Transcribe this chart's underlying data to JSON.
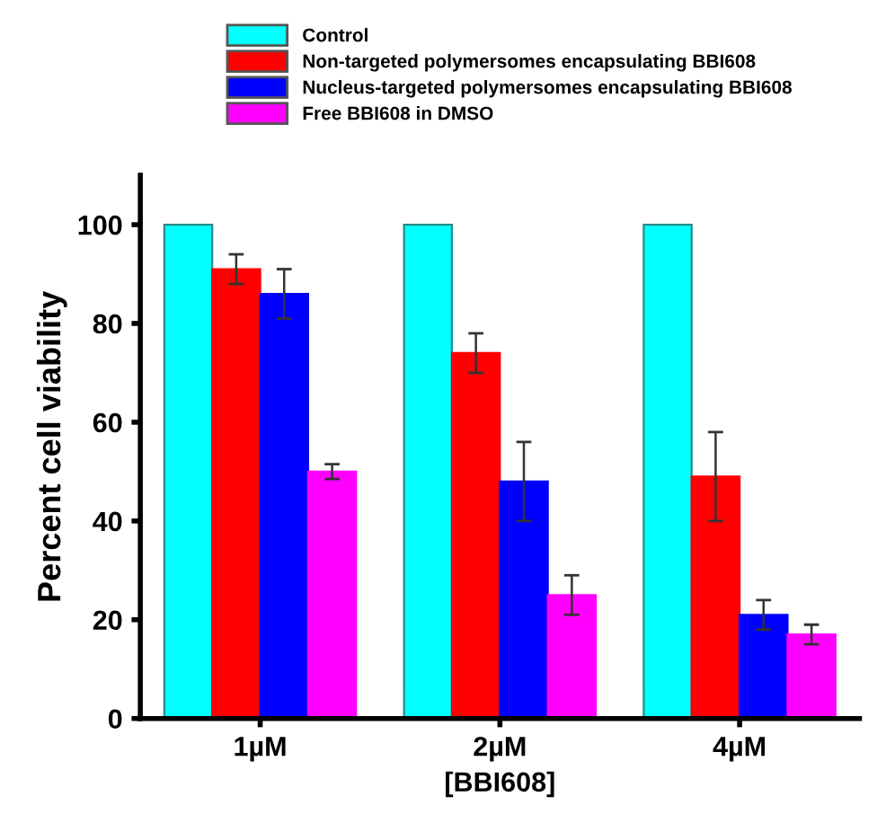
{
  "chart_data": {
    "type": "bar",
    "xlabel": "[BBI608]",
    "ylabel": "Percent cell viability",
    "categories": [
      "1µM",
      "2µM",
      "4µM"
    ],
    "ylim": [
      0,
      110
    ],
    "yticks": [
      0,
      20,
      40,
      60,
      80,
      100
    ],
    "legend": "top",
    "grid": false,
    "series": [
      {
        "name": "Control",
        "color": "#00ffff",
        "values": [
          100,
          100,
          100
        ]
      },
      {
        "name": "Non-targeted polymersomes encapsulating BBI608",
        "color": "#ff0000",
        "values": [
          91,
          74,
          49
        ],
        "errors": [
          3,
          4,
          9
        ]
      },
      {
        "name": "Nucleus-targeted polymersomes encapsulating BBI608",
        "color": "#0000ff",
        "values": [
          86,
          48,
          21
        ],
        "errors": [
          5,
          8,
          3
        ]
      },
      {
        "name": "Free BBI608 in DMSO",
        "color": "#ff00ff",
        "values": [
          50,
          25,
          17
        ],
        "errors": [
          1.5,
          4,
          2
        ]
      }
    ]
  }
}
